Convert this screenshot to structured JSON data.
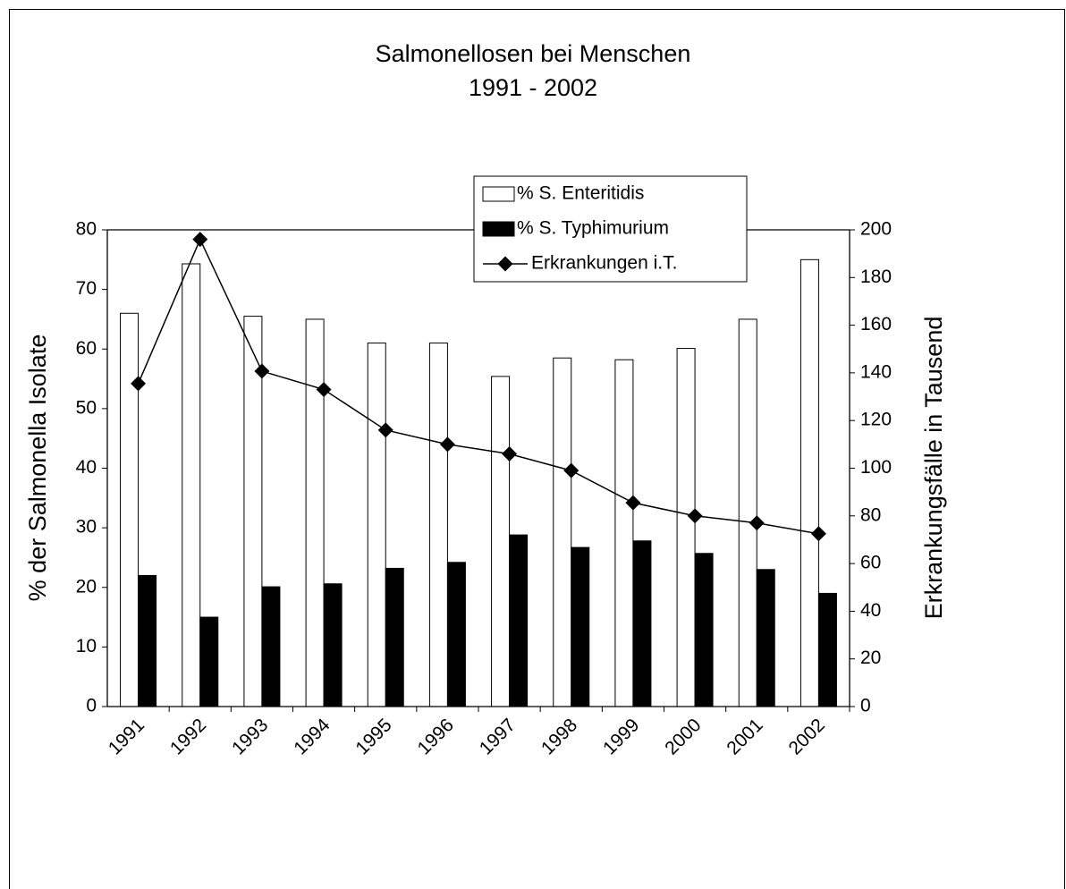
{
  "chart_data": {
    "type": "bar",
    "title": "Salmonellosen bei Menschen",
    "subtitle": "1991 - 2002",
    "y_label": "% der Salmonella Isolate",
    "y2_label": "Erkrankungsfälle in Tausend",
    "categories": [
      "1991",
      "1992",
      "1993",
      "1994",
      "1995",
      "1996",
      "1997",
      "1998",
      "1999",
      "2000",
      "2001",
      "2002"
    ],
    "series": [
      {
        "name": "% S. Enteritidis",
        "type": "bar",
        "color": "#ffffff",
        "values": [
          66,
          74.3,
          65.5,
          65,
          61,
          61,
          55.4,
          58.5,
          58.2,
          60.1,
          65,
          75
        ]
      },
      {
        "name": "% S. Typhimurium",
        "type": "bar",
        "color": "#000000",
        "values": [
          22,
          15,
          20.1,
          20.6,
          23.2,
          24.2,
          28.8,
          26.7,
          27.8,
          25.7,
          23,
          19
        ]
      },
      {
        "name": "Erkrankungen i.T.",
        "type": "line",
        "axis": "y2",
        "color": "#000000",
        "values": [
          135.5,
          196,
          140.7,
          133,
          116,
          110,
          106,
          99,
          85.5,
          80,
          77,
          72.5
        ]
      }
    ],
    "ylim": [
      0,
      80
    ],
    "yticks": [
      0,
      10,
      20,
      30,
      40,
      50,
      60,
      70,
      80
    ],
    "y2lim": [
      0,
      200
    ],
    "y2ticks": [
      0,
      20,
      40,
      60,
      80,
      100,
      120,
      140,
      160,
      180,
      200
    ],
    "legend": "top"
  }
}
